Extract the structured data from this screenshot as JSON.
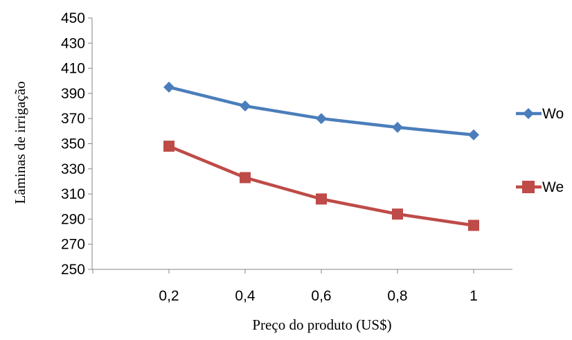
{
  "chart_data": {
    "type": "line",
    "title": "",
    "xlabel": "Preço do produto (US$)",
    "ylabel": "Lâminas de irrigação",
    "x": [
      "0,2",
      "0,4",
      "0,6",
      "0,8",
      "1"
    ],
    "x_categories_offset_note": "",
    "ylim": [
      250,
      450
    ],
    "yticks": [
      "250",
      "270",
      "290",
      "310",
      "330",
      "350",
      "370",
      "390",
      "410",
      "430",
      "450"
    ],
    "grid": false,
    "legend_position": "right",
    "series": [
      {
        "name": "Wo",
        "color": "#4a7ebb",
        "marker": "diamond",
        "values": [
          395,
          380,
          370,
          363,
          357
        ]
      },
      {
        "name": "We",
        "color": "#be4b48",
        "marker": "square",
        "values": [
          348,
          323,
          306,
          294,
          285
        ]
      }
    ]
  }
}
